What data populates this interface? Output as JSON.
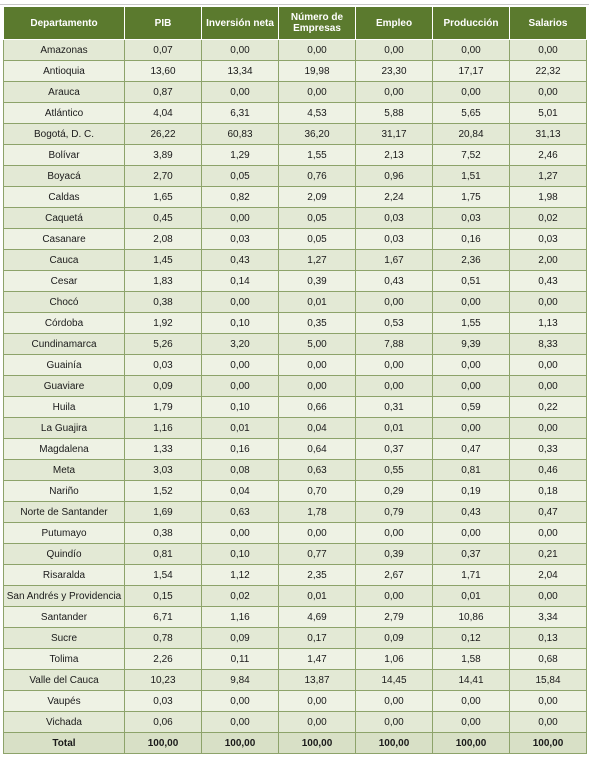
{
  "columns": [
    "Departamento",
    "PIB",
    "Inversión neta",
    "Número de Empresas",
    "Empleo",
    "Producción",
    "Salarios"
  ],
  "rows": [
    [
      "Amazonas",
      "0,07",
      "0,00",
      "0,00",
      "0,00",
      "0,00",
      "0,00"
    ],
    [
      "Antioquia",
      "13,60",
      "13,34",
      "19,98",
      "23,30",
      "17,17",
      "22,32"
    ],
    [
      "Arauca",
      "0,87",
      "0,00",
      "0,00",
      "0,00",
      "0,00",
      "0,00"
    ],
    [
      "Atlántico",
      "4,04",
      "6,31",
      "4,53",
      "5,88",
      "5,65",
      "5,01"
    ],
    [
      "Bogotá, D. C.",
      "26,22",
      "60,83",
      "36,20",
      "31,17",
      "20,84",
      "31,13"
    ],
    [
      "Bolívar",
      "3,89",
      "1,29",
      "1,55",
      "2,13",
      "7,52",
      "2,46"
    ],
    [
      "Boyacá",
      "2,70",
      "0,05",
      "0,76",
      "0,96",
      "1,51",
      "1,27"
    ],
    [
      "Caldas",
      "1,65",
      "0,82",
      "2,09",
      "2,24",
      "1,75",
      "1,98"
    ],
    [
      "Caquetá",
      "0,45",
      "0,00",
      "0,05",
      "0,03",
      "0,03",
      "0,02"
    ],
    [
      "Casanare",
      "2,08",
      "0,03",
      "0,05",
      "0,03",
      "0,16",
      "0,03"
    ],
    [
      "Cauca",
      "1,45",
      "0,43",
      "1,27",
      "1,67",
      "2,36",
      "2,00"
    ],
    [
      "Cesar",
      "1,83",
      "0,14",
      "0,39",
      "0,43",
      "0,51",
      "0,43"
    ],
    [
      "Chocó",
      "0,38",
      "0,00",
      "0,01",
      "0,00",
      "0,00",
      "0,00"
    ],
    [
      "Córdoba",
      "1,92",
      "0,10",
      "0,35",
      "0,53",
      "1,55",
      "1,13"
    ],
    [
      "Cundinamarca",
      "5,26",
      "3,20",
      "5,00",
      "7,88",
      "9,39",
      "8,33"
    ],
    [
      "Guainía",
      "0,03",
      "0,00",
      "0,00",
      "0,00",
      "0,00",
      "0,00"
    ],
    [
      "Guaviare",
      "0,09",
      "0,00",
      "0,00",
      "0,00",
      "0,00",
      "0,00"
    ],
    [
      "Huila",
      "1,79",
      "0,10",
      "0,66",
      "0,31",
      "0,59",
      "0,22"
    ],
    [
      "La Guajira",
      "1,16",
      "0,01",
      "0,04",
      "0,01",
      "0,00",
      "0,00"
    ],
    [
      "Magdalena",
      "1,33",
      "0,16",
      "0,64",
      "0,37",
      "0,47",
      "0,33"
    ],
    [
      "Meta",
      "3,03",
      "0,08",
      "0,63",
      "0,55",
      "0,81",
      "0,46"
    ],
    [
      "Nariño",
      "1,52",
      "0,04",
      "0,70",
      "0,29",
      "0,19",
      "0,18"
    ],
    [
      "Norte de Santander",
      "1,69",
      "0,63",
      "1,78",
      "0,79",
      "0,43",
      "0,47"
    ],
    [
      "Putumayo",
      "0,38",
      "0,00",
      "0,00",
      "0,00",
      "0,00",
      "0,00"
    ],
    [
      "Quindío",
      "0,81",
      "0,10",
      "0,77",
      "0,39",
      "0,37",
      "0,21"
    ],
    [
      "Risaralda",
      "1,54",
      "1,12",
      "2,35",
      "2,67",
      "1,71",
      "2,04"
    ],
    [
      "San Andrés y Providencia",
      "0,15",
      "0,02",
      "0,01",
      "0,00",
      "0,01",
      "0,00"
    ],
    [
      "Santander",
      "6,71",
      "1,16",
      "4,69",
      "2,79",
      "10,86",
      "3,34"
    ],
    [
      "Sucre",
      "0,78",
      "0,09",
      "0,17",
      "0,09",
      "0,12",
      "0,13"
    ],
    [
      "Tolima",
      "2,26",
      "0,11",
      "1,47",
      "1,06",
      "1,58",
      "0,68"
    ],
    [
      "Valle del Cauca",
      "10,23",
      "9,84",
      "13,87",
      "14,45",
      "14,41",
      "15,84"
    ],
    [
      "Vaupés",
      "0,03",
      "0,00",
      "0,00",
      "0,00",
      "0,00",
      "0,00"
    ],
    [
      "Vichada",
      "0,06",
      "0,00",
      "0,00",
      "0,00",
      "0,00",
      "0,00"
    ]
  ],
  "total": [
    "Total",
    "100,00",
    "100,00",
    "100,00",
    "100,00",
    "100,00",
    "100,00"
  ],
  "colors": {
    "header_bg": "#5b7a2e",
    "row_bg": "#e3e9d5",
    "row_alt_bg": "#eef2e4",
    "border": "#8da36a"
  }
}
